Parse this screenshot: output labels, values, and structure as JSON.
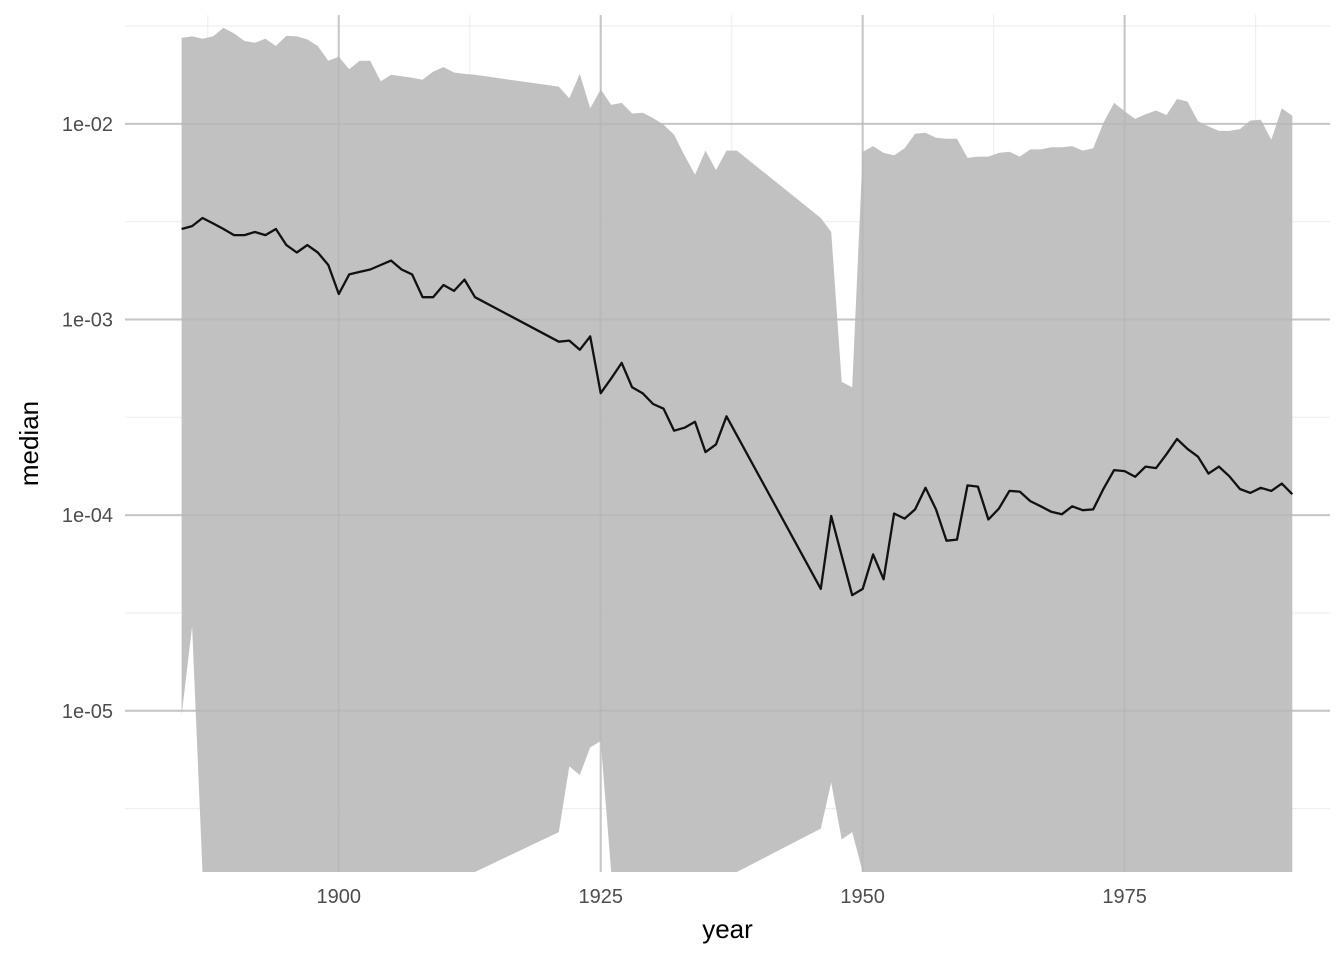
{
  "chart_data": {
    "type": "area",
    "xlabel": "year",
    "ylabel": "median",
    "y_scale": "log10",
    "xlim": [
      1879.6,
      1994.6
    ],
    "ylim": [
      1.5e-06,
      0.036
    ],
    "x_ticks": [
      1900,
      1925,
      1950,
      1975
    ],
    "x_tick_labels": [
      "1900",
      "1925",
      "1950",
      "1975"
    ],
    "y_ticks": [
      1e-05,
      0.0001,
      0.001,
      0.01
    ],
    "y_tick_labels": [
      "1e-05",
      "1e-04",
      "1e-03",
      "1e-02"
    ],
    "grid": true,
    "legend": "none",
    "colors": {
      "ribbon": "#bebebe",
      "line": "#111111",
      "grid_major": "#dedede",
      "grid_minor": "#efefef"
    },
    "ribbon": {
      "x": [
        1885,
        1886,
        1887,
        1888,
        1889,
        1890,
        1891,
        1892,
        1893,
        1894,
        1895,
        1896,
        1897,
        1898,
        1899,
        1900,
        1901,
        1902,
        1903,
        1904,
        1905,
        1906,
        1907,
        1908,
        1909,
        1910,
        1911,
        1912,
        1913,
        1921,
        1922,
        1923,
        1924,
        1925,
        1926,
        1927,
        1928,
        1929,
        1930,
        1931,
        1932,
        1933,
        1934,
        1935,
        1936,
        1937,
        1938,
        1946,
        1947,
        1948,
        1949,
        1950,
        1951,
        1952,
        1953,
        1954,
        1955,
        1956,
        1957,
        1958,
        1959,
        1960,
        1961,
        1962,
        1963,
        1964,
        1965,
        1966,
        1967,
        1968,
        1969,
        1970,
        1971,
        1972,
        1973,
        1974,
        1975,
        1976,
        1977,
        1978,
        1979,
        1980,
        1981,
        1982,
        1983,
        1984,
        1985,
        1986,
        1987,
        1988,
        1989,
        1990,
        1991
      ],
      "upper": [
        0.0275,
        0.028,
        0.0272,
        0.028,
        0.031,
        0.029,
        0.0265,
        0.026,
        0.0272,
        0.025,
        0.0282,
        0.028,
        0.027,
        0.025,
        0.021,
        0.022,
        0.019,
        0.021,
        0.021,
        0.0165,
        0.0178,
        0.0175,
        0.0172,
        0.0168,
        0.0185,
        0.0195,
        0.0183,
        0.018,
        0.0178,
        0.0155,
        0.0135,
        0.018,
        0.012,
        0.015,
        0.0125,
        0.0128,
        0.0113,
        0.0114,
        0.0107,
        0.0099,
        0.0088,
        0.0069,
        0.0055,
        0.0073,
        0.0058,
        0.0073,
        0.0073,
        0.0033,
        0.0028,
        0.00048,
        0.00045,
        0.0072,
        0.0077,
        0.0071,
        0.0069,
        0.0075,
        0.0089,
        0.009,
        0.0085,
        0.0084,
        0.0084,
        0.0067,
        0.0068,
        0.0068,
        0.0071,
        0.0072,
        0.0068,
        0.0074,
        0.0074,
        0.0076,
        0.0076,
        0.0077,
        0.0073,
        0.0075,
        0.0102,
        0.0128,
        0.0116,
        0.0106,
        0.0112,
        0.0117,
        0.0111,
        0.0134,
        0.013,
        0.0103,
        0.0097,
        0.0092,
        0.0092,
        0.0094,
        0.0104,
        0.0105,
        0.0083,
        0.012,
        0.011
      ],
      "lower": [
        9.5e-06,
        2.7e-05,
        1.5e-06,
        1.5e-06,
        1.5e-06,
        1.5e-06,
        1.5e-06,
        1.5e-06,
        1.5e-06,
        1.5e-06,
        1.5e-06,
        1.5e-06,
        1.5e-06,
        1.5e-06,
        1.5e-06,
        1.5e-06,
        1.5e-06,
        1.5e-06,
        1.5e-06,
        1.5e-06,
        1.5e-06,
        1.5e-06,
        1.5e-06,
        1.5e-06,
        1.5e-06,
        1.5e-06,
        1.5e-06,
        1.5e-06,
        1.5e-06,
        2.4e-06,
        5.2e-06,
        4.7e-06,
        6.5e-06,
        7e-06,
        1.5e-06,
        1.5e-06,
        1.5e-06,
        1.5e-06,
        1.5e-06,
        1.5e-06,
        1.5e-06,
        1.5e-06,
        1.5e-06,
        1.5e-06,
        1.5e-06,
        1.5e-06,
        1.5e-06,
        2.5e-06,
        4.3e-06,
        2.2e-06,
        2.4e-06,
        1.5e-06,
        1.5e-06,
        1.5e-06,
        1.5e-06,
        1.5e-06,
        1.5e-06,
        1.5e-06,
        1.5e-06,
        1.5e-06,
        1.5e-06,
        1.5e-06,
        1.5e-06,
        1.5e-06,
        1.5e-06,
        1.5e-06,
        1.5e-06,
        1.5e-06,
        1.5e-06,
        1.5e-06,
        1.5e-06,
        1.5e-06,
        1.5e-06,
        1.5e-06,
        1.5e-06,
        1.5e-06,
        1.5e-06,
        1.5e-06,
        1.5e-06,
        1.5e-06,
        1.5e-06,
        1.5e-06,
        1.5e-06,
        1.5e-06,
        1.5e-06,
        1.5e-06,
        1.5e-06,
        1.5e-06,
        1.5e-06,
        1.5e-06,
        1.5e-06,
        1.5e-06,
        1.5e-06
      ]
    },
    "series": [
      {
        "x": [
          1885,
          1886,
          1887,
          1888,
          1889,
          1890,
          1891,
          1892,
          1893,
          1894,
          1895,
          1896,
          1897,
          1898,
          1899,
          1900,
          1901,
          1902,
          1903,
          1904,
          1905,
          1906,
          1907,
          1908,
          1909,
          1910,
          1911,
          1912,
          1913,
          1921,
          1922,
          1923,
          1924,
          1925,
          1926,
          1927,
          1928,
          1929,
          1930,
          1931,
          1932,
          1933,
          1934,
          1935,
          1936,
          1937,
          1946,
          1947,
          1948,
          1949,
          1950,
          1951,
          1952,
          1953,
          1954,
          1955,
          1956,
          1957,
          1958,
          1959,
          1960,
          1961,
          1962,
          1963,
          1964,
          1965,
          1966,
          1967,
          1968,
          1969,
          1970,
          1971,
          1972,
          1973,
          1974,
          1975,
          1976,
          1977,
          1978,
          1979,
          1980,
          1981,
          1982,
          1983,
          1984,
          1985,
          1986,
          1987,
          1988,
          1989,
          1990,
          1991
        ],
        "values": [
          0.0029,
          0.003,
          0.0033,
          0.0031,
          0.0029,
          0.0027,
          0.0027,
          0.0028,
          0.0027,
          0.0029,
          0.0024,
          0.0022,
          0.0024,
          0.0022,
          0.0019,
          0.00135,
          0.0017,
          0.00175,
          0.0018,
          0.0019,
          0.002,
          0.0018,
          0.0017,
          0.0013,
          0.0013,
          0.0015,
          0.0014,
          0.0016,
          0.0013,
          0.00077,
          0.00078,
          0.0007,
          0.00082,
          0.00042,
          0.0005,
          0.0006,
          0.00045,
          0.00042,
          0.00037,
          0.00035,
          0.00027,
          0.00028,
          0.0003,
          0.00021,
          0.00023,
          0.00032,
          4.2e-05,
          9.9e-05,
          6.2e-05,
          3.9e-05,
          4.2e-05,
          6.3e-05,
          4.7e-05,
          0.000102,
          9.6e-05,
          0.000107,
          0.000138,
          0.000107,
          7.4e-05,
          7.5e-05,
          0.000142,
          0.00014,
          9.5e-05,
          0.000108,
          0.000133,
          0.000132,
          0.000118,
          0.000111,
          0.000104,
          0.000101,
          0.000111,
          0.000106,
          0.000107,
          0.000137,
          0.00017,
          0.000168,
          0.000157,
          0.000177,
          0.000174,
          0.000205,
          0.000245,
          0.000218,
          0.000199,
          0.000163,
          0.000177,
          0.000158,
          0.000136,
          0.00013,
          0.000138,
          0.000133,
          0.000145,
          0.000128
        ]
      }
    ]
  }
}
